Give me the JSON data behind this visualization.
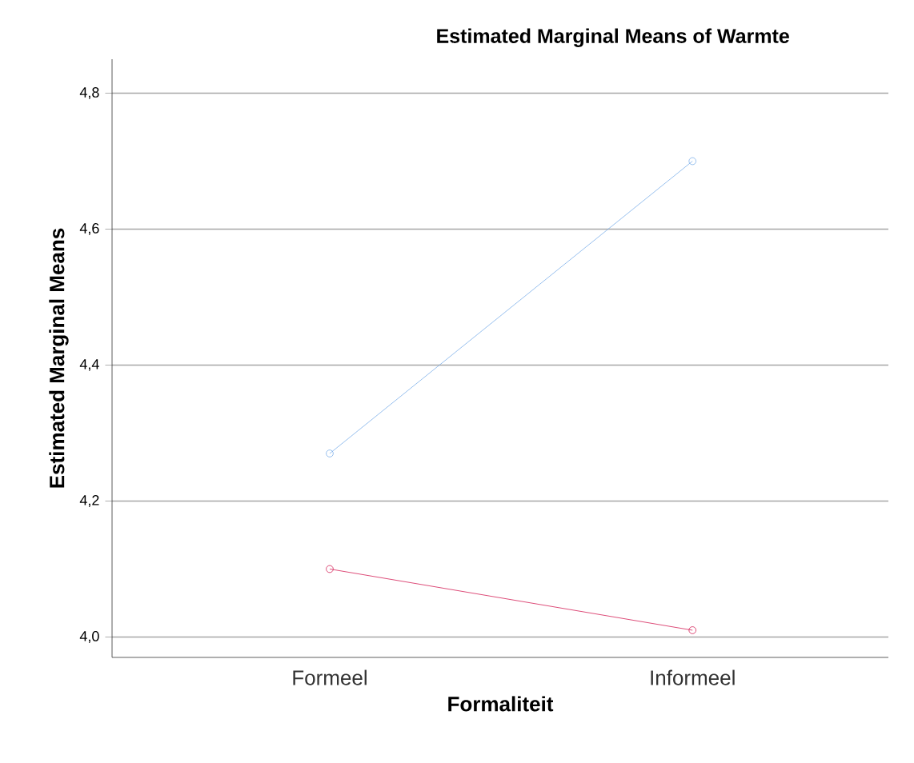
{
  "chart_data": {
    "type": "line",
    "title": "Estimated Marginal Means of Warmte",
    "xlabel": "Formaliteit",
    "ylabel": "Estimated Marginal Means",
    "categories": [
      "Formeel",
      "Informeel"
    ],
    "series": [
      {
        "color": "#7eb0ea",
        "values": [
          4.27,
          4.7
        ]
      },
      {
        "color": "#d42057",
        "values": [
          4.1,
          4.01
        ]
      }
    ],
    "ylim": [
      3.97,
      4.85
    ],
    "yticks": [
      {
        "value": 4.0,
        "label": "4,0"
      },
      {
        "value": 4.2,
        "label": "4,2"
      },
      {
        "value": 4.4,
        "label": "4,4"
      },
      {
        "value": 4.6,
        "label": "4,6"
      },
      {
        "value": 4.8,
        "label": "4,8"
      }
    ],
    "grid": "y",
    "marker": "circle",
    "line_style": "solid"
  }
}
